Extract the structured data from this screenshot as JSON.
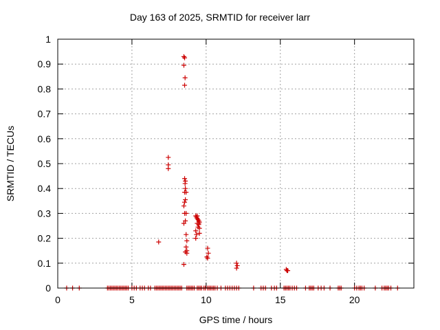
{
  "chart_data": {
    "type": "scatter",
    "title": "Day 163 of 2025, SRMTID for receiver larr",
    "xlabel": "GPS time / hours",
    "ylabel": "SRMTID / TECUs",
    "xlim": [
      0,
      24
    ],
    "ylim": [
      0,
      1
    ],
    "xticks": [
      0,
      5,
      10,
      15,
      20
    ],
    "yticks": [
      0,
      0.1,
      0.2,
      0.3,
      0.4,
      0.5,
      0.6,
      0.7,
      0.8,
      0.9,
      1
    ],
    "xtick_labels": [
      "0",
      "5",
      "10",
      "15",
      "20"
    ],
    "ytick_labels": [
      "0",
      "0.1",
      "0.2",
      "0.3",
      "0.4",
      "0.5",
      "0.6",
      "0.7",
      "0.8",
      "0.9",
      "1"
    ],
    "grid": true,
    "marker": "+",
    "color": "#cc0000",
    "series": [
      {
        "name": "SRMTID",
        "points": [
          [
            0.6,
            0
          ],
          [
            1.0,
            0
          ],
          [
            1.45,
            0
          ],
          [
            3.35,
            0
          ],
          [
            3.45,
            0
          ],
          [
            3.55,
            0
          ],
          [
            3.65,
            0
          ],
          [
            3.75,
            0
          ],
          [
            3.85,
            0
          ],
          [
            3.95,
            0
          ],
          [
            4.05,
            0
          ],
          [
            4.15,
            0
          ],
          [
            4.25,
            0
          ],
          [
            4.35,
            0
          ],
          [
            4.45,
            0
          ],
          [
            4.55,
            0
          ],
          [
            4.65,
            0
          ],
          [
            4.75,
            0
          ],
          [
            5.0,
            0
          ],
          [
            5.15,
            0
          ],
          [
            5.3,
            0
          ],
          [
            5.55,
            0
          ],
          [
            5.7,
            0
          ],
          [
            5.85,
            0
          ],
          [
            6.1,
            0
          ],
          [
            6.25,
            0
          ],
          [
            6.55,
            0
          ],
          [
            6.65,
            0
          ],
          [
            6.75,
            0
          ],
          [
            6.85,
            0
          ],
          [
            6.95,
            0
          ],
          [
            7.05,
            0
          ],
          [
            7.15,
            0
          ],
          [
            7.25,
            0
          ],
          [
            7.35,
            0
          ],
          [
            7.45,
            0
          ],
          [
            7.55,
            0
          ],
          [
            7.65,
            0
          ],
          [
            7.75,
            0
          ],
          [
            7.85,
            0
          ],
          [
            7.95,
            0
          ],
          [
            8.05,
            0
          ],
          [
            8.15,
            0
          ],
          [
            8.25,
            0
          ],
          [
            8.35,
            0
          ],
          [
            8.7,
            0
          ],
          [
            8.8,
            0
          ],
          [
            8.9,
            0
          ],
          [
            9.0,
            0
          ],
          [
            9.1,
            0
          ],
          [
            9.2,
            0
          ],
          [
            9.4,
            0
          ],
          [
            9.5,
            0
          ],
          [
            9.6,
            0
          ],
          [
            9.7,
            0
          ],
          [
            9.85,
            0
          ],
          [
            9.95,
            0
          ],
          [
            10.1,
            0
          ],
          [
            10.2,
            0
          ],
          [
            10.3,
            0
          ],
          [
            10.4,
            0
          ],
          [
            10.5,
            0
          ],
          [
            10.6,
            0
          ],
          [
            10.75,
            0
          ],
          [
            11.0,
            0
          ],
          [
            11.3,
            0
          ],
          [
            11.45,
            0
          ],
          [
            11.6,
            0
          ],
          [
            11.75,
            0
          ],
          [
            11.9,
            0
          ],
          [
            12.05,
            0
          ],
          [
            12.2,
            0
          ],
          [
            13.2,
            0
          ],
          [
            13.7,
            0
          ],
          [
            13.85,
            0
          ],
          [
            14.0,
            0
          ],
          [
            14.4,
            0
          ],
          [
            14.6,
            0
          ],
          [
            14.75,
            0
          ],
          [
            15.25,
            0
          ],
          [
            15.35,
            0
          ],
          [
            15.45,
            0
          ],
          [
            15.55,
            0
          ],
          [
            15.65,
            0
          ],
          [
            15.8,
            0
          ],
          [
            15.95,
            0
          ],
          [
            16.1,
            0
          ],
          [
            16.7,
            0
          ],
          [
            16.95,
            0
          ],
          [
            17.05,
            0
          ],
          [
            17.15,
            0
          ],
          [
            17.25,
            0
          ],
          [
            17.55,
            0
          ],
          [
            17.75,
            0
          ],
          [
            17.95,
            0
          ],
          [
            18.35,
            0
          ],
          [
            18.9,
            0
          ],
          [
            19.0,
            0
          ],
          [
            19.1,
            0
          ],
          [
            20.0,
            0
          ],
          [
            20.15,
            0
          ],
          [
            20.3,
            0
          ],
          [
            20.4,
            0
          ],
          [
            20.5,
            0
          ],
          [
            20.65,
            0
          ],
          [
            21.4,
            0
          ],
          [
            21.85,
            0
          ],
          [
            22.0,
            0
          ],
          [
            22.1,
            0
          ],
          [
            22.2,
            0
          ],
          [
            22.3,
            0
          ],
          [
            22.45,
            0
          ],
          [
            22.9,
            0
          ],
          [
            6.8,
            0.185
          ],
          [
            7.45,
            0.525
          ],
          [
            7.45,
            0.495
          ],
          [
            7.45,
            0.48
          ],
          [
            8.5,
            0.93
          ],
          [
            8.55,
            0.925
          ],
          [
            8.5,
            0.895
          ],
          [
            8.58,
            0.845
          ],
          [
            8.55,
            0.815
          ],
          [
            8.55,
            0.44
          ],
          [
            8.6,
            0.43
          ],
          [
            8.58,
            0.42
          ],
          [
            8.6,
            0.4
          ],
          [
            8.55,
            0.385
          ],
          [
            8.65,
            0.385
          ],
          [
            8.6,
            0.355
          ],
          [
            8.55,
            0.345
          ],
          [
            8.5,
            0.33
          ],
          [
            8.65,
            0.3
          ],
          [
            8.55,
            0.3
          ],
          [
            8.6,
            0.27
          ],
          [
            8.5,
            0.26
          ],
          [
            8.65,
            0.215
          ],
          [
            8.7,
            0.19
          ],
          [
            8.65,
            0.165
          ],
          [
            8.7,
            0.15
          ],
          [
            8.6,
            0.145
          ],
          [
            8.7,
            0.14
          ],
          [
            8.5,
            0.095
          ],
          [
            9.3,
            0.29
          ],
          [
            9.35,
            0.285
          ],
          [
            9.4,
            0.28
          ],
          [
            9.45,
            0.275
          ],
          [
            9.5,
            0.27
          ],
          [
            9.55,
            0.265
          ],
          [
            9.4,
            0.26
          ],
          [
            9.5,
            0.255
          ],
          [
            9.45,
            0.245
          ],
          [
            9.55,
            0.24
          ],
          [
            9.3,
            0.23
          ],
          [
            9.35,
            0.215
          ],
          [
            9.3,
            0.2
          ],
          [
            9.55,
            0.22
          ],
          [
            9.5,
            0.26
          ],
          [
            9.4,
            0.29
          ],
          [
            10.1,
            0.16
          ],
          [
            10.15,
            0.14
          ],
          [
            10.05,
            0.125
          ],
          [
            10.1,
            0.12
          ],
          [
            12.05,
            0.1
          ],
          [
            12.1,
            0.09
          ],
          [
            12.05,
            0.08
          ],
          [
            15.4,
            0.075
          ],
          [
            15.5,
            0.07
          ],
          [
            15.45,
            0.07
          ]
        ]
      }
    ]
  }
}
